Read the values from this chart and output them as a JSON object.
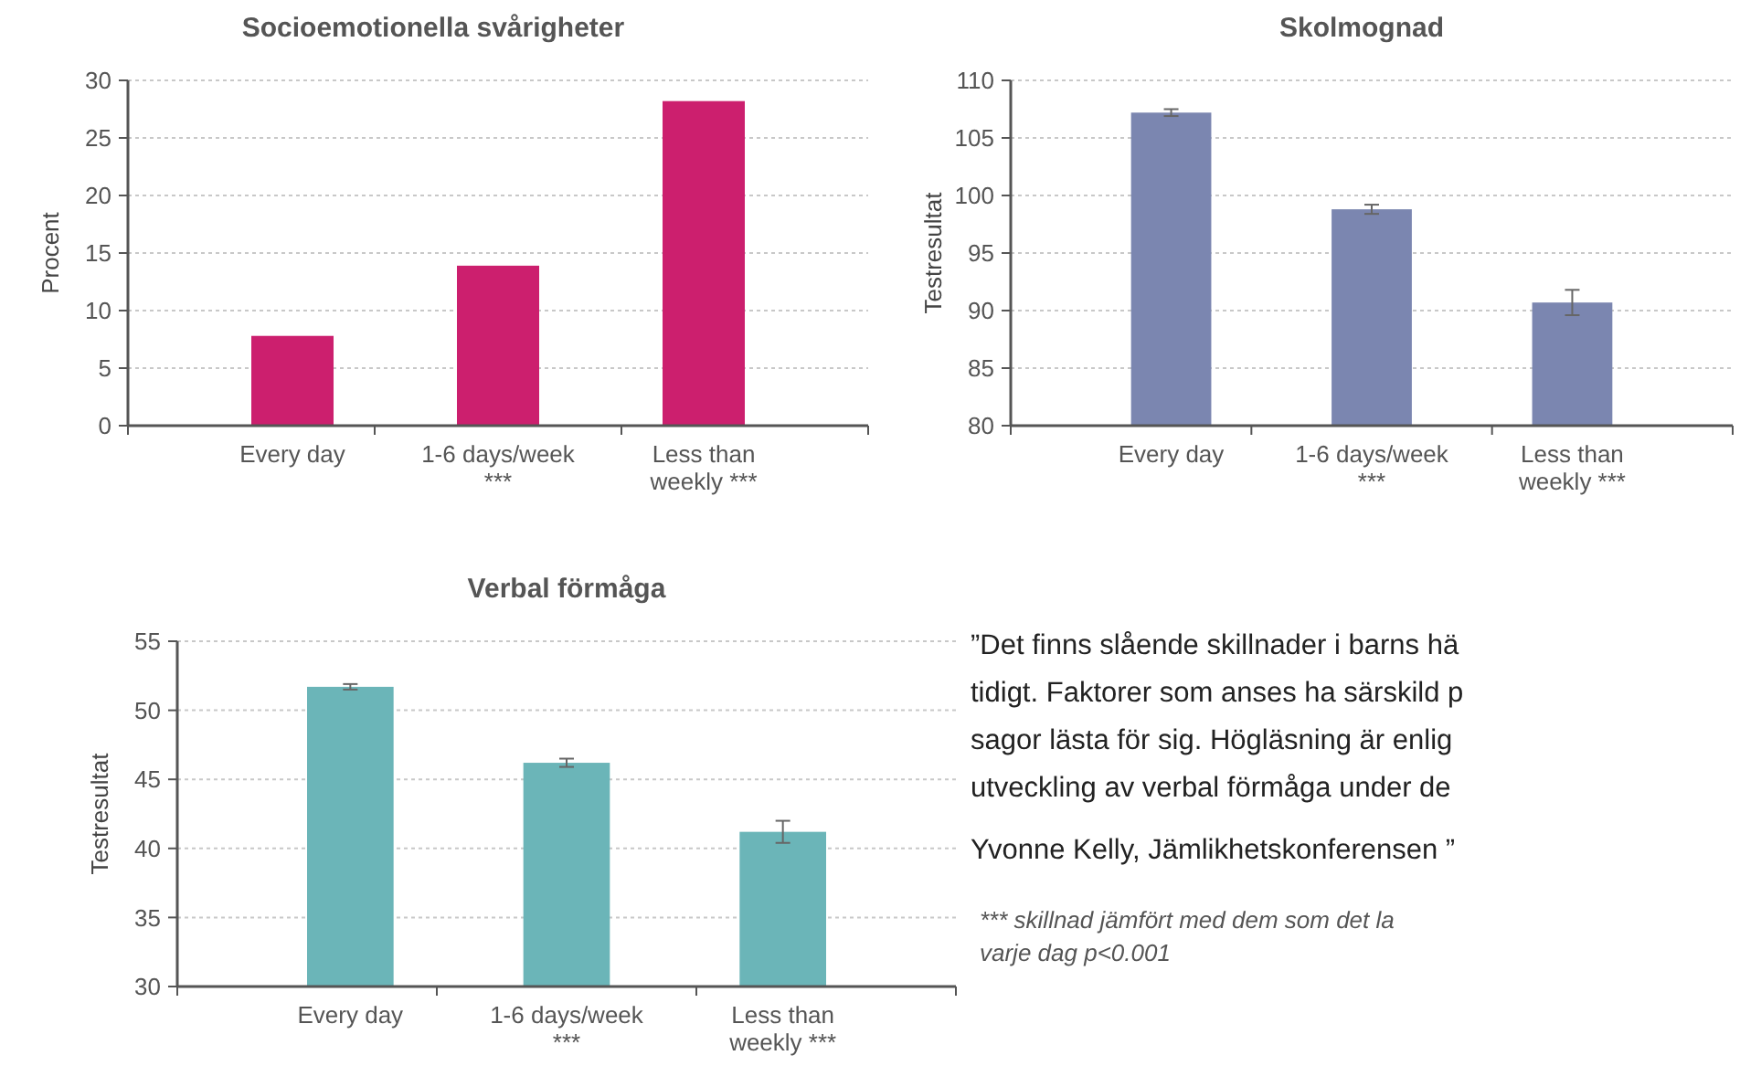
{
  "chart_data": [
    {
      "type": "bar",
      "title": "Socioemotionella svårigheter",
      "ylabel": "Procent",
      "categories": [
        "Every day",
        "1-6 days/week\n***",
        "Less than\nweekly ***"
      ],
      "values": [
        7.8,
        13.9,
        28.2
      ],
      "color": "#cc1f6e",
      "ylim": [
        0,
        30
      ],
      "yticks": [
        0,
        5,
        10,
        15,
        20,
        25,
        30
      ],
      "grid": "y"
    },
    {
      "type": "bar",
      "title": "Skolmognad",
      "ylabel": "Testresultat",
      "categories": [
        "Every day",
        "1-6 days/week\n***",
        "Less than\nweekly ***"
      ],
      "values": [
        107.2,
        98.8,
        90.7
      ],
      "errors": [
        0.3,
        0.4,
        1.1
      ],
      "color": "#7b86b0",
      "ylim": [
        80,
        110
      ],
      "yticks": [
        80,
        85,
        90,
        95,
        100,
        105,
        110
      ],
      "grid": "y"
    },
    {
      "type": "bar",
      "title": "Verbal förmåga",
      "ylabel": "Testresultat",
      "categories": [
        "Every day",
        "1-6 days/week\n***",
        "Less than\nweekly ***"
      ],
      "values": [
        51.7,
        46.2,
        41.2
      ],
      "errors": [
        0.2,
        0.3,
        0.8
      ],
      "color": "#6bb5b8",
      "ylim": [
        30,
        55
      ],
      "yticks": [
        30,
        35,
        40,
        45,
        50,
        55
      ],
      "grid": "y"
    },
    {
      "type": "other",
      "annotations": [
        "”Det finns slående skillnader i barns hä",
        "tidigt. Faktorer som anses ha särskild p",
        "sagor lästa för sig. Högläsning är enlig",
        "utveckling av verbal förmåga under de",
        "Yvonne Kelly, Jämlikhetskonferensen ”",
        "*** skillnad jämfört med dem som det la",
        "varje dag p<0.001"
      ]
    }
  ]
}
